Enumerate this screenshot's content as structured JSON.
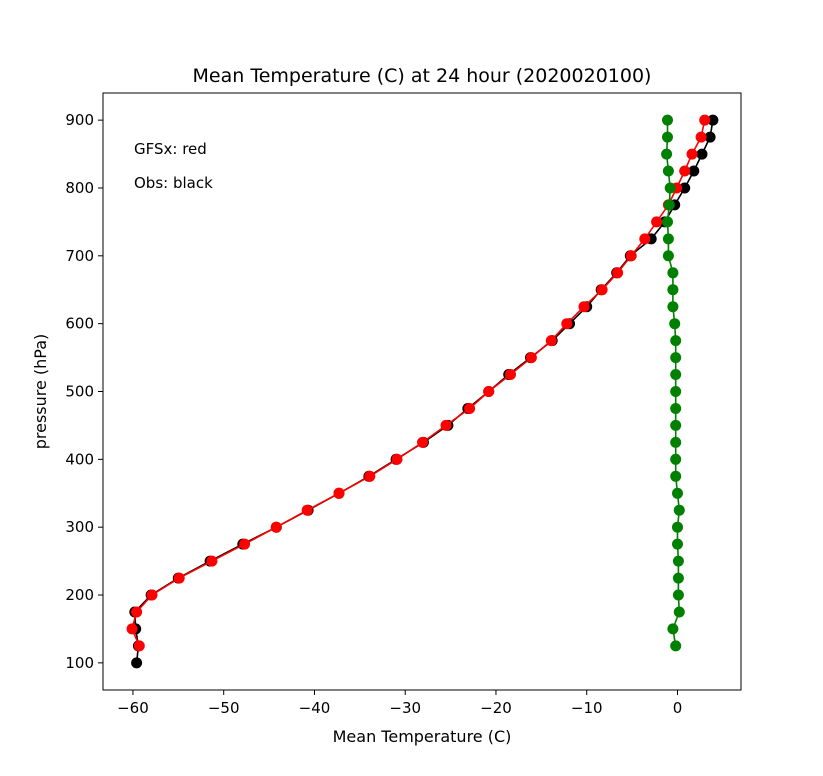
{
  "chart_data": {
    "type": "line",
    "title": "Mean Temperature (C) at 24 hour (2020020100)",
    "xlabel": "Mean Temperature (C)",
    "ylabel": "pressure (hPa)",
    "xlim": [
      -63.3,
      7
    ],
    "ylim": [
      60,
      940
    ],
    "x_ticks": [
      -60,
      -50,
      -40,
      -30,
      -20,
      -10,
      0
    ],
    "y_ticks": [
      100,
      200,
      300,
      400,
      500,
      600,
      700,
      800,
      900
    ],
    "grid": false,
    "annotations": [
      "GFSx: red",
      "Obs: black"
    ],
    "series": [
      {
        "color": "#000000",
        "x": [
          3.9,
          3.6,
          2.7,
          1.8,
          0.8,
          -0.3,
          -1.4,
          -2.9,
          -5.2,
          -6.7,
          -8.4,
          -10.0,
          -11.9,
          -13.8,
          -16.2,
          -18.6,
          -20.8,
          -23.1,
          -25.3,
          -28.0,
          -31.0,
          -34.0,
          -37.3,
          -40.7,
          -44.2,
          -47.9,
          -51.5,
          -55.0,
          -58.0,
          -59.8,
          -59.7,
          -59.4,
          -59.6
        ],
        "y": [
          900,
          875,
          850,
          825,
          800,
          775,
          750,
          725,
          700,
          675,
          650,
          625,
          600,
          575,
          550,
          525,
          500,
          475,
          450,
          425,
          400,
          375,
          350,
          325,
          300,
          275,
          250,
          225,
          200,
          175,
          150,
          125,
          100
        ]
      },
      {
        "color": "#ff0000",
        "x": [
          3.0,
          2.6,
          1.6,
          0.8,
          -0.1,
          -1.0,
          -2.3,
          -3.6,
          -5.1,
          -6.6,
          -8.3,
          -10.3,
          -12.2,
          -13.9,
          -16.1,
          -18.4,
          -20.8,
          -22.9,
          -25.5,
          -28.1,
          -30.9,
          -33.9,
          -37.3,
          -40.8,
          -44.2,
          -47.7,
          -51.3,
          -54.9,
          -57.9,
          -59.6,
          -60.1,
          -59.3
        ],
        "y": [
          900,
          875,
          850,
          825,
          800,
          775,
          750,
          725,
          700,
          675,
          650,
          625,
          600,
          575,
          550,
          525,
          500,
          475,
          450,
          425,
          400,
          375,
          350,
          325,
          300,
          275,
          250,
          225,
          200,
          175,
          150,
          125
        ]
      },
      {
        "color": "#008000",
        "x": [
          -1.1,
          -1.1,
          -1.2,
          -1.0,
          -0.8,
          -0.9,
          -1.1,
          -1.0,
          -1.0,
          -0.5,
          -0.5,
          -0.5,
          -0.3,
          -0.2,
          -0.2,
          -0.2,
          -0.2,
          -0.2,
          -0.2,
          -0.2,
          -0.2,
          -0.2,
          0.0,
          0.2,
          0.0,
          0.0,
          0.1,
          0.1,
          0.1,
          0.2,
          -0.5,
          -0.2
        ],
        "y": [
          900,
          875,
          850,
          825,
          800,
          775,
          750,
          725,
          700,
          675,
          650,
          625,
          600,
          575,
          550,
          525,
          500,
          475,
          450,
          425,
          400,
          375,
          350,
          325,
          300,
          275,
          250,
          225,
          200,
          175,
          150,
          125
        ]
      }
    ]
  }
}
